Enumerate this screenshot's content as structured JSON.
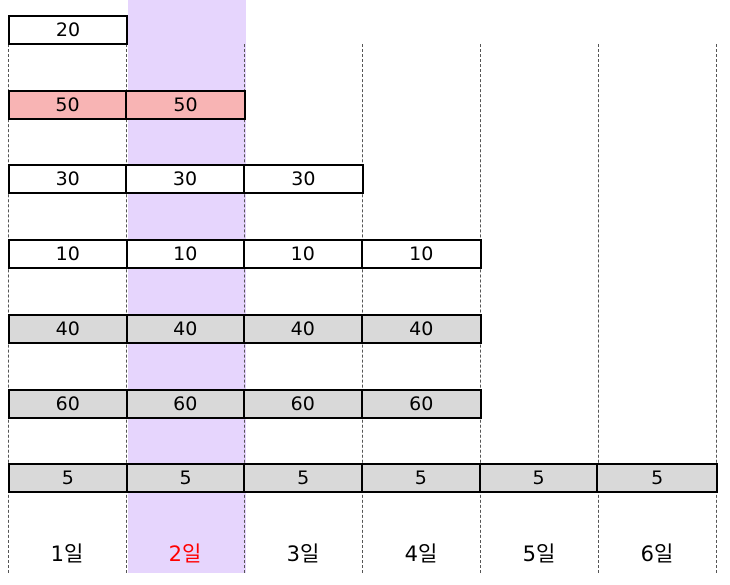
{
  "highlight": {
    "day_index": 1,
    "column_color": "#e6d5fd",
    "label_color": "#ff0000"
  },
  "days": [
    "1일",
    "2일",
    "3일",
    "4일",
    "5일",
    "6일"
  ],
  "rows": [
    {
      "value": "20",
      "span": 1,
      "fill": "#ffffff"
    },
    {
      "value": "50",
      "span": 2,
      "fill": "#f8b4b4"
    },
    {
      "value": "30",
      "span": 3,
      "fill": "#ffffff"
    },
    {
      "value": "10",
      "span": 4,
      "fill": "#ffffff"
    },
    {
      "value": "40",
      "span": 4,
      "fill": "#d9d9d9"
    },
    {
      "value": "60",
      "span": 4,
      "fill": "#d9d9d9"
    },
    {
      "value": "5",
      "span": 6,
      "fill": "#d9d9d9"
    }
  ]
}
